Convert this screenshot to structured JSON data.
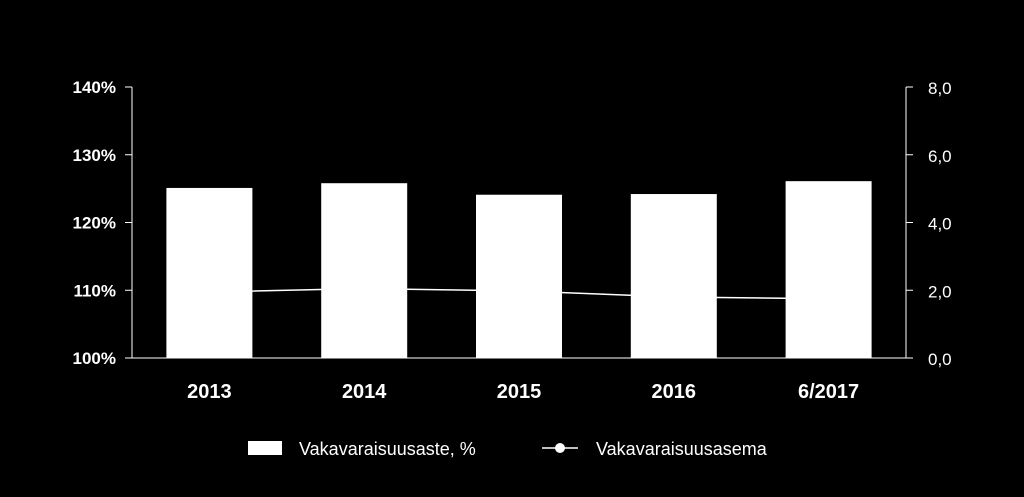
{
  "chart_data": {
    "type": "bar",
    "categories": [
      "2013",
      "2014",
      "2015",
      "2016",
      "6/2017"
    ],
    "series": [
      {
        "name": "Vakavaraisuusaste, %",
        "type": "bar",
        "axis": "left",
        "values": [
          125.1,
          125.8,
          124.1,
          124.2,
          126.1
        ],
        "color": "#ffffff"
      },
      {
        "name": "Vakavaraisuusasema",
        "type": "line",
        "axis": "right",
        "values": [
          1.95,
          2.05,
          1.98,
          1.8,
          1.75
        ],
        "color": "#ffffff"
      }
    ],
    "y_left": {
      "min": 100,
      "max": 140,
      "ticks": [
        "100%",
        "110%",
        "120%",
        "130%",
        "140%"
      ]
    },
    "y_right": {
      "min": 0,
      "max": 8,
      "ticks": [
        "0,0",
        "2,0",
        "4,0",
        "6,0",
        "8,0"
      ]
    },
    "legend_position": "bottom",
    "grid": false,
    "background": "#000000"
  }
}
